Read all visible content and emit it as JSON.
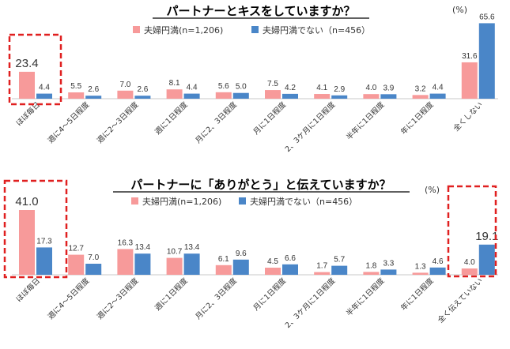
{
  "chart_data": [
    {
      "type": "bar",
      "title": "パートナーとキスをしていますか？",
      "unit": "(%)",
      "categories": [
        "ほぼ毎日",
        "週に4～5日程度",
        "週に2～3日程度",
        "週に1日程度",
        "月に2、3日程度",
        "月に1日程度",
        "2、3ケ月に1日程度",
        "半年に1日程度",
        "年に1日程度",
        "全くしない"
      ],
      "series": [
        {
          "name": "夫婦円満(n=1,206)",
          "color": "#f79a9a",
          "values": [
            23.4,
            5.5,
            7.0,
            8.1,
            5.6,
            7.5,
            4.1,
            4.0,
            3.2,
            31.6
          ]
        },
        {
          "name": "夫婦円満でない（n=456）",
          "color": "#4a86c8",
          "values": [
            4.4,
            2.6,
            2.6,
            4.4,
            5.0,
            4.2,
            2.9,
            3.9,
            4.4,
            65.6
          ]
        }
      ],
      "value_labels": [
        [
          "23.4",
          "5.5",
          "7.0",
          "8.1",
          "5.6",
          "7.5",
          "4.1",
          "4.0",
          "3.2",
          "31.6"
        ],
        [
          "4.4",
          "2.6",
          "2.6",
          "4.4",
          "5.0",
          "4.2",
          "2.9",
          "3.9",
          "4.4",
          "65.6"
        ]
      ],
      "ylim": [
        0,
        70
      ],
      "highlight_categories": [
        0
      ],
      "highlight_color": "#e02020",
      "legend_position": "top"
    },
    {
      "type": "bar",
      "title": "パートナーに「ありがとう」と伝えていますか？",
      "unit": "(%)",
      "categories": [
        "ほぼ毎日",
        "週に4～5日程度",
        "週に2～3日程度",
        "週に1日程度",
        "月に2、3日程度",
        "月に1日程度",
        "2、3ケ月に1日程度",
        "半年に1日程度",
        "年に1日程度",
        "全く伝えていない"
      ],
      "series": [
        {
          "name": "夫婦円満(n=1,206)",
          "color": "#f79a9a",
          "values": [
            41.0,
            12.7,
            16.3,
            10.7,
            6.1,
            4.5,
            1.7,
            1.8,
            1.3,
            4.0
          ]
        },
        {
          "name": "夫婦円満でない（n=456）",
          "color": "#4a86c8",
          "values": [
            17.3,
            7.0,
            13.4,
            13.4,
            9.6,
            6.6,
            5.7,
            3.3,
            4.6,
            19.1
          ]
        }
      ],
      "value_labels": [
        [
          "41.0",
          "12.7",
          "16.3",
          "10.7",
          "6.1",
          "4.5",
          "1.7",
          "1.8",
          "1.3",
          "4.0"
        ],
        [
          "17.3",
          "7.0",
          "13.4",
          "13.4",
          "9.6",
          "6.6",
          "5.7",
          "3.3",
          "4.6",
          "19.1"
        ]
      ],
      "ylim": [
        0,
        45
      ],
      "highlight_categories": [
        0,
        9
      ],
      "highlight_color": "#e02020",
      "legend_position": "top"
    }
  ]
}
